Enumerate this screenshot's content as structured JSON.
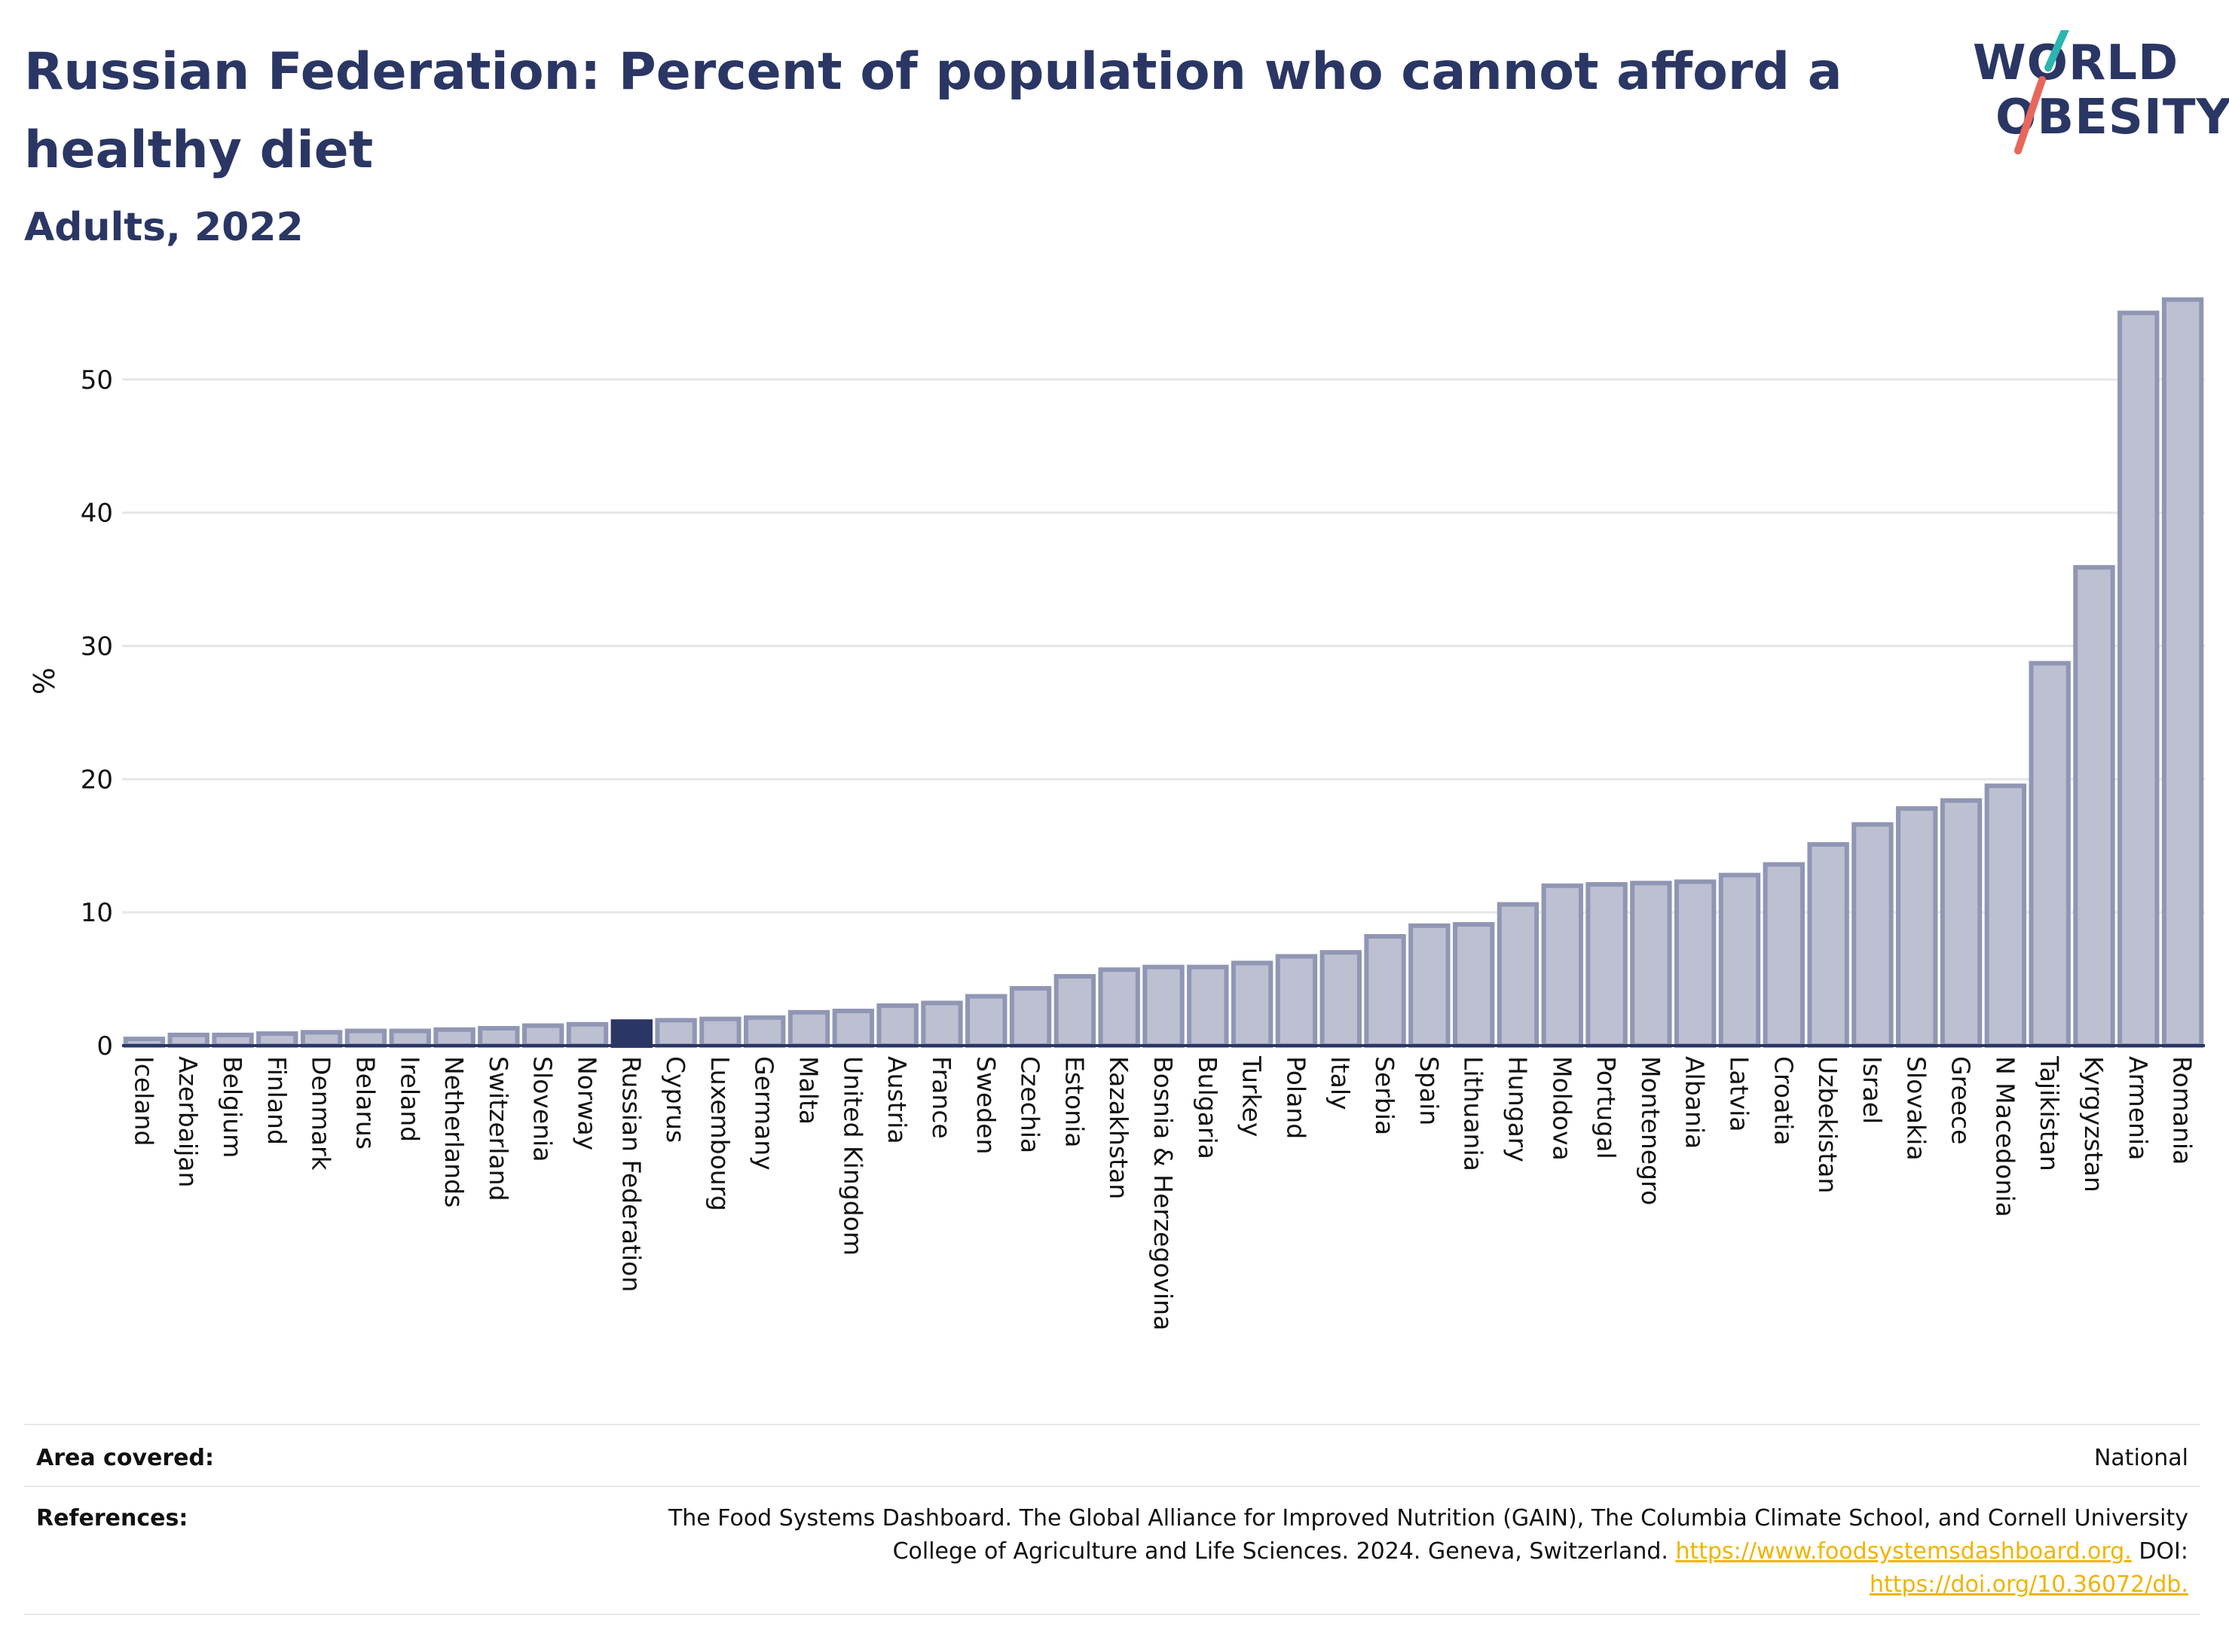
{
  "header": {
    "title": "Russian Federation: Percent of population who cannot afford a healthy diet",
    "subtitle": "Adults, 2022"
  },
  "logo": {
    "line1": "WORLD",
    "line2": "OBESITY",
    "colors": {
      "text": "#2a3664",
      "slash_top": "#2bb5b0",
      "slash_bottom": "#e8675c"
    }
  },
  "colors": {
    "bar_fill": "#bcc0d1",
    "bar_stroke": "#9096b3",
    "highlight_fill": "#2a3664",
    "grid": "#e6e6ea",
    "axis": "#2a3664",
    "link": "#f0b400"
  },
  "chart_data": {
    "type": "bar",
    "ylabel": "%",
    "ylim": [
      0,
      57
    ],
    "yticks": [
      0,
      10,
      20,
      30,
      40,
      50
    ],
    "grid": true,
    "highlight": "Russian Federation",
    "categories": [
      "Iceland",
      "Azerbaijan",
      "Belgium",
      "Finland",
      "Denmark",
      "Belarus",
      "Ireland",
      "Netherlands",
      "Switzerland",
      "Slovenia",
      "Norway",
      "Russian Federation",
      "Cyprus",
      "Luxembourg",
      "Germany",
      "Malta",
      "United Kingdom",
      "Austria",
      "France",
      "Sweden",
      "Czechia",
      "Estonia",
      "Kazakhstan",
      "Bosnia & Herzegovina",
      "Bulgaria",
      "Turkey",
      "Poland",
      "Italy",
      "Serbia",
      "Spain",
      "Lithuania",
      "Hungary",
      "Moldova",
      "Portugal",
      "Montenegro",
      "Albania",
      "Latvia",
      "Croatia",
      "Uzbekistan",
      "Israel",
      "Slovakia",
      "Greece",
      "N Macedonia",
      "Tajikistan",
      "Kyrgyzstan",
      "Armenia",
      "Romania"
    ],
    "values": [
      0.5,
      0.8,
      0.8,
      0.9,
      1.0,
      1.1,
      1.1,
      1.2,
      1.3,
      1.5,
      1.6,
      1.8,
      1.9,
      2.0,
      2.1,
      2.5,
      2.6,
      3.0,
      3.2,
      3.7,
      4.3,
      5.2,
      5.7,
      5.9,
      5.9,
      6.2,
      6.7,
      7.0,
      8.2,
      9.0,
      9.1,
      10.6,
      12.0,
      12.1,
      12.2,
      12.3,
      12.8,
      13.6,
      15.1,
      16.6,
      17.8,
      18.4,
      19.5,
      28.7,
      35.9,
      55.0,
      56.0
    ]
  },
  "footer": {
    "area_label": "Area covered:",
    "area_value": "National",
    "ref_label": "References:",
    "ref_line1": "The Food Systems Dashboard. The Global Alliance for Improved Nutrition (GAIN), The Columbia Climate School, and Cornell University",
    "ref_line2_text": "College of Agriculture and Life Sciences. 2024. Geneva, Switzerland.",
    "ref_link1": "https://www.foodsystemsdashboard.org.",
    "ref_doi": "DOI:",
    "ref_link2": "https://doi.org/10.36072/db."
  }
}
